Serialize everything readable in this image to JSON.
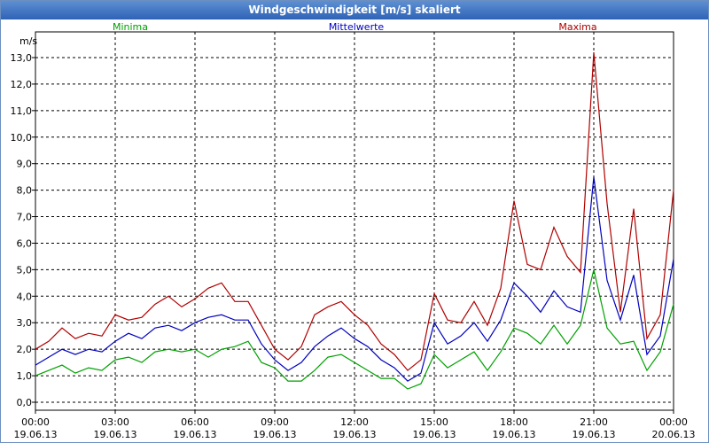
{
  "window": {
    "title": "Windgeschwindigkeit [m/s] skaliert"
  },
  "chart_data": {
    "type": "line",
    "title": "Windgeschwindigkeit [m/s] skaliert",
    "ylabel": "m/s",
    "xlabel": "",
    "ylim": [
      0,
      13
    ],
    "y_ticks": [
      "0,0",
      "1,0",
      "2,0",
      "3,0",
      "4,0",
      "5,0",
      "6,0",
      "7,0",
      "8,0",
      "9,0",
      "10,0",
      "11,0",
      "12,0",
      "13,0"
    ],
    "x_ticks": [
      {
        "time": "00:00",
        "date": "19.06.13"
      },
      {
        "time": "03:00",
        "date": "19.06.13"
      },
      {
        "time": "06:00",
        "date": "19.06.13"
      },
      {
        "time": "09:00",
        "date": "19.06.13"
      },
      {
        "time": "12:00",
        "date": "19.06.13"
      },
      {
        "time": "15:00",
        "date": "19.06.13"
      },
      {
        "time": "18:00",
        "date": "19.06.13"
      },
      {
        "time": "21:00",
        "date": "19.06.13"
      },
      {
        "time": "00:00",
        "date": "20.06.13"
      }
    ],
    "xlim_hours": [
      0,
      24
    ],
    "grid": true,
    "legend_position": "top",
    "series": [
      {
        "name": "Minima",
        "color": "#00a000",
        "x_hours": [
          0,
          0.5,
          1,
          1.5,
          2,
          2.5,
          3,
          3.5,
          4,
          4.5,
          5,
          5.5,
          6,
          6.5,
          7,
          7.5,
          8,
          8.5,
          9,
          9.5,
          10,
          10.5,
          11,
          11.5,
          12,
          12.5,
          13,
          13.5,
          14,
          14.5,
          15,
          15.5,
          16,
          16.5,
          17,
          17.5,
          18,
          18.5,
          19,
          19.5,
          20,
          20.5,
          21,
          21.5,
          22,
          22.5,
          23,
          23.5,
          24
        ],
        "values": [
          1.0,
          1.2,
          1.4,
          1.1,
          1.3,
          1.2,
          1.6,
          1.7,
          1.5,
          1.9,
          2.0,
          1.9,
          2.0,
          1.7,
          2.0,
          2.1,
          2.3,
          1.5,
          1.3,
          0.8,
          0.8,
          1.2,
          1.7,
          1.8,
          1.5,
          1.2,
          0.9,
          0.9,
          0.5,
          0.7,
          1.8,
          1.3,
          1.6,
          1.9,
          1.2,
          1.9,
          2.8,
          2.6,
          2.2,
          2.9,
          2.2,
          2.9,
          5.0,
          2.8,
          2.2,
          2.3,
          1.2,
          1.9,
          3.7
        ]
      },
      {
        "name": "Mittelwerte",
        "color": "#0000c0",
        "x_hours": [
          0,
          0.5,
          1,
          1.5,
          2,
          2.5,
          3,
          3.5,
          4,
          4.5,
          5,
          5.5,
          6,
          6.5,
          7,
          7.5,
          8,
          8.5,
          9,
          9.5,
          10,
          10.5,
          11,
          11.5,
          12,
          12.5,
          13,
          13.5,
          14,
          14.5,
          15,
          15.5,
          16,
          16.5,
          17,
          17.5,
          18,
          18.5,
          19,
          19.5,
          20,
          20.5,
          21,
          21.5,
          22,
          22.5,
          23,
          23.5,
          24
        ],
        "values": [
          1.4,
          1.7,
          2.0,
          1.8,
          2.0,
          1.9,
          2.3,
          2.6,
          2.4,
          2.8,
          2.9,
          2.7,
          3.0,
          3.2,
          3.3,
          3.1,
          3.1,
          2.2,
          1.6,
          1.2,
          1.5,
          2.1,
          2.5,
          2.8,
          2.4,
          2.1,
          1.6,
          1.3,
          0.8,
          1.1,
          3.0,
          2.2,
          2.5,
          3.0,
          2.3,
          3.1,
          4.5,
          4.0,
          3.4,
          4.2,
          3.6,
          3.4,
          8.5,
          4.6,
          3.1,
          4.8,
          1.8,
          2.5,
          5.4
        ]
      },
      {
        "name": "Maxima",
        "color": "#b00000",
        "x_hours": [
          0,
          0.5,
          1,
          1.5,
          2,
          2.5,
          3,
          3.5,
          4,
          4.5,
          5,
          5.5,
          6,
          6.5,
          7,
          7.5,
          8,
          8.5,
          9,
          9.5,
          10,
          10.5,
          11,
          11.5,
          12,
          12.5,
          13,
          13.5,
          14,
          14.5,
          15,
          15.5,
          16,
          16.5,
          17,
          17.5,
          18,
          18.5,
          19,
          19.5,
          20,
          20.5,
          21,
          21.5,
          22,
          22.5,
          23,
          23.5,
          24
        ],
        "values": [
          2.0,
          2.3,
          2.8,
          2.4,
          2.6,
          2.5,
          3.3,
          3.1,
          3.2,
          3.7,
          4.0,
          3.6,
          3.9,
          4.3,
          4.5,
          3.8,
          3.8,
          2.9,
          2.0,
          1.6,
          2.1,
          3.3,
          3.6,
          3.8,
          3.3,
          2.9,
          2.2,
          1.8,
          1.2,
          1.6,
          4.1,
          3.1,
          3.0,
          3.8,
          2.9,
          4.3,
          7.6,
          5.2,
          5.0,
          6.6,
          5.5,
          4.9,
          13.2,
          7.5,
          3.4,
          7.3,
          2.4,
          3.3,
          8.0
        ]
      }
    ]
  }
}
